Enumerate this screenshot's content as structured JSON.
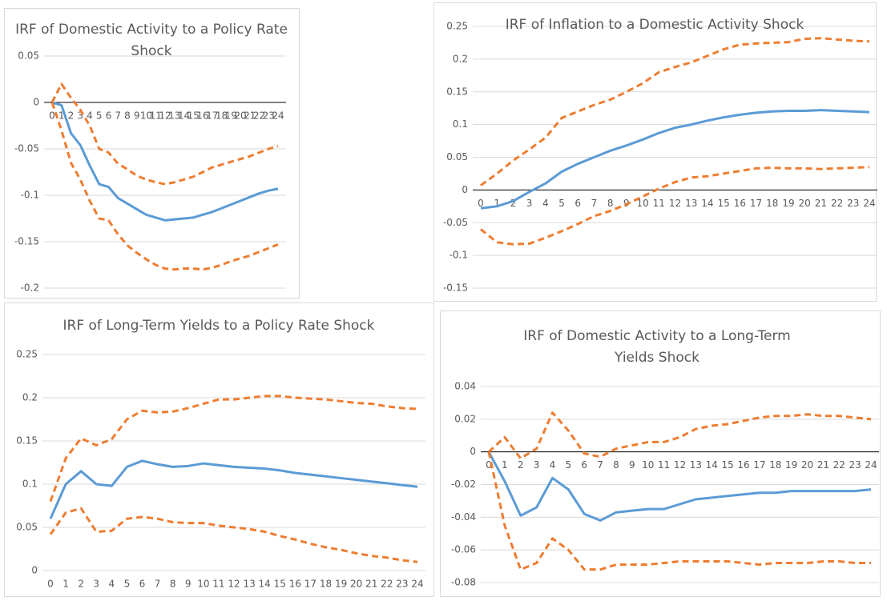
{
  "chart_data": [
    {
      "type": "line",
      "title": "IRF of Domestic Activity to a Policy Rate Shock",
      "categories": [
        0,
        1,
        2,
        3,
        4,
        5,
        6,
        7,
        8,
        9,
        10,
        11,
        12,
        13,
        14,
        15,
        16,
        17,
        18,
        19,
        20,
        21,
        22,
        23,
        24
      ],
      "ylim": [
        -0.2,
        0.05
      ],
      "yticks": [
        -0.2,
        -0.15,
        -0.1,
        -0.05,
        0,
        0.05
      ],
      "grid": true,
      "series": [
        {
          "color": "#5b9bd5",
          "dashed": false,
          "values": [
            0,
            -0.003,
            -0.033,
            -0.046,
            -0.068,
            -0.088,
            -0.091,
            -0.103,
            -0.109,
            -0.115,
            -0.121,
            -0.124,
            -0.127,
            -0.126,
            -0.125,
            -0.124,
            -0.121,
            -0.118,
            -0.114,
            -0.11,
            -0.106,
            -0.102,
            -0.098,
            -0.095,
            -0.093
          ]
        },
        {
          "color": "#ed7d31",
          "dashed": true,
          "values": [
            0,
            0.02,
            0.005,
            -0.008,
            -0.025,
            -0.05,
            -0.054,
            -0.066,
            -0.072,
            -0.079,
            -0.083,
            -0.086,
            -0.088,
            -0.086,
            -0.083,
            -0.08,
            -0.075,
            -0.07,
            -0.067,
            -0.064,
            -0.061,
            -0.058,
            -0.054,
            -0.05,
            -0.047
          ]
        },
        {
          "color": "#ed7d31",
          "dashed": true,
          "values": [
            0,
            -0.03,
            -0.065,
            -0.083,
            -0.106,
            -0.125,
            -0.127,
            -0.142,
            -0.154,
            -0.162,
            -0.169,
            -0.175,
            -0.179,
            -0.18,
            -0.179,
            -0.179,
            -0.18,
            -0.178,
            -0.175,
            -0.171,
            -0.168,
            -0.165,
            -0.161,
            -0.157,
            -0.153
          ]
        }
      ]
    },
    {
      "type": "line",
      "title": "IRF of Inflation to a Domestic Activity Shock",
      "categories": [
        0,
        1,
        2,
        3,
        4,
        5,
        6,
        7,
        8,
        9,
        10,
        11,
        12,
        13,
        14,
        15,
        16,
        17,
        18,
        19,
        20,
        21,
        22,
        23,
        24
      ],
      "ylim": [
        -0.15,
        0.25
      ],
      "yticks": [
        -0.15,
        -0.1,
        -0.05,
        0,
        0.05,
        0.1,
        0.15,
        0.2,
        0.25
      ],
      "grid": true,
      "series": [
        {
          "color": "#5b9bd5",
          "dashed": false,
          "values": [
            -0.028,
            -0.025,
            -0.017,
            -0.003,
            0.01,
            0.028,
            0.04,
            0.05,
            0.06,
            0.068,
            0.077,
            0.087,
            0.095,
            0.1,
            0.106,
            0.111,
            0.115,
            0.118,
            0.12,
            0.121,
            0.121,
            0.122,
            0.121,
            0.12,
            0.119
          ]
        },
        {
          "color": "#ed7d31",
          "dashed": true,
          "values": [
            0.007,
            0.025,
            0.045,
            0.062,
            0.08,
            0.11,
            0.12,
            0.13,
            0.138,
            0.15,
            0.163,
            0.18,
            0.188,
            0.195,
            0.205,
            0.215,
            0.222,
            0.224,
            0.225,
            0.226,
            0.231,
            0.232,
            0.23,
            0.228,
            0.227
          ]
        },
        {
          "color": "#ed7d31",
          "dashed": true,
          "values": [
            -0.06,
            -0.08,
            -0.083,
            -0.082,
            -0.073,
            -0.063,
            -0.052,
            -0.04,
            -0.032,
            -0.022,
            -0.01,
            0.002,
            0.012,
            0.019,
            0.021,
            0.025,
            0.029,
            0.033,
            0.034,
            0.033,
            0.033,
            0.032,
            0.033,
            0.034,
            0.035
          ]
        }
      ]
    },
    {
      "type": "line",
      "title": "IRF of Long-Term Yields to a Policy Rate Shock",
      "categories": [
        0,
        1,
        2,
        3,
        4,
        5,
        6,
        7,
        8,
        9,
        10,
        11,
        12,
        13,
        14,
        15,
        16,
        17,
        18,
        19,
        20,
        21,
        22,
        23,
        24
      ],
      "ylim": [
        0,
        0.25
      ],
      "yticks": [
        0,
        0.05,
        0.1,
        0.15,
        0.2,
        0.25
      ],
      "grid": true,
      "series": [
        {
          "color": "#5b9bd5",
          "dashed": false,
          "values": [
            0.06,
            0.1,
            0.115,
            0.1,
            0.098,
            0.12,
            0.127,
            0.123,
            0.12,
            0.121,
            0.124,
            0.122,
            0.12,
            0.119,
            0.118,
            0.116,
            0.113,
            0.111,
            0.109,
            0.107,
            0.105,
            0.103,
            0.101,
            0.099,
            0.097
          ]
        },
        {
          "color": "#ed7d31",
          "dashed": true,
          "values": [
            0.08,
            0.13,
            0.153,
            0.145,
            0.152,
            0.175,
            0.185,
            0.183,
            0.184,
            0.188,
            0.193,
            0.198,
            0.198,
            0.2,
            0.202,
            0.202,
            0.2,
            0.199,
            0.198,
            0.196,
            0.194,
            0.193,
            0.19,
            0.188,
            0.187
          ]
        },
        {
          "color": "#ed7d31",
          "dashed": true,
          "values": [
            0.042,
            0.067,
            0.072,
            0.045,
            0.046,
            0.06,
            0.062,
            0.06,
            0.056,
            0.055,
            0.055,
            0.052,
            0.05,
            0.048,
            0.045,
            0.04,
            0.036,
            0.031,
            0.027,
            0.024,
            0.02,
            0.017,
            0.015,
            0.012,
            0.01
          ]
        }
      ]
    },
    {
      "type": "line",
      "title": "IRF of Domestic Activity to a Long-Term Yields Shock",
      "categories": [
        0,
        1,
        2,
        3,
        4,
        5,
        6,
        7,
        8,
        9,
        10,
        11,
        12,
        13,
        14,
        15,
        16,
        17,
        18,
        19,
        20,
        21,
        22,
        23,
        24
      ],
      "ylim": [
        -0.08,
        0.04
      ],
      "yticks": [
        -0.08,
        -0.06,
        -0.04,
        -0.02,
        0,
        0.02,
        0.04
      ],
      "grid": true,
      "series": [
        {
          "color": "#5b9bd5",
          "dashed": false,
          "values": [
            0,
            -0.018,
            -0.039,
            -0.034,
            -0.016,
            -0.023,
            -0.038,
            -0.042,
            -0.037,
            -0.036,
            -0.035,
            -0.035,
            -0.032,
            -0.029,
            -0.028,
            -0.027,
            -0.026,
            -0.025,
            -0.025,
            -0.024,
            -0.024,
            -0.024,
            -0.024,
            -0.024,
            -0.023
          ]
        },
        {
          "color": "#ed7d31",
          "dashed": true,
          "values": [
            0,
            0.009,
            -0.004,
            0.002,
            0.024,
            0.013,
            -0.001,
            -0.003,
            0.002,
            0.004,
            0.006,
            0.006,
            0.009,
            0.014,
            0.016,
            0.017,
            0.019,
            0.021,
            0.022,
            0.022,
            0.023,
            0.022,
            0.022,
            0.021,
            0.02
          ]
        },
        {
          "color": "#ed7d31",
          "dashed": true,
          "values": [
            0,
            -0.045,
            -0.072,
            -0.068,
            -0.053,
            -0.06,
            -0.072,
            -0.072,
            -0.069,
            -0.069,
            -0.069,
            -0.068,
            -0.067,
            -0.067,
            -0.067,
            -0.067,
            -0.068,
            -0.069,
            -0.068,
            -0.068,
            -0.068,
            -0.067,
            -0.067,
            -0.068,
            -0.068
          ]
        }
      ]
    }
  ]
}
